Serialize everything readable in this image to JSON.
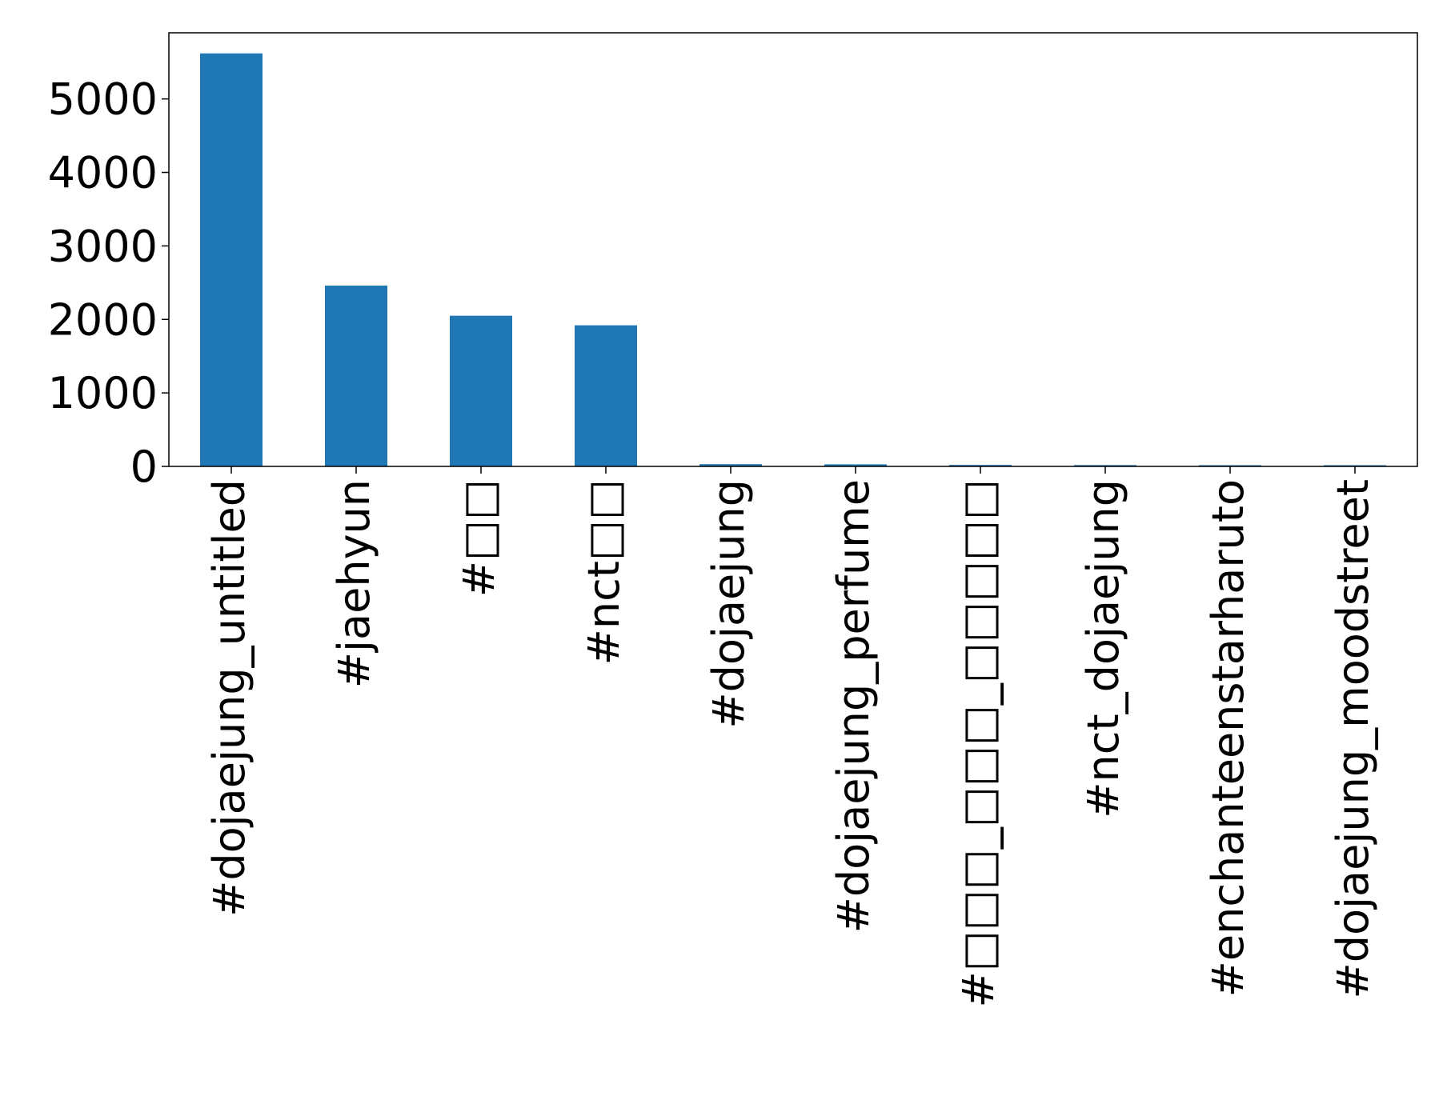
{
  "chart_data": {
    "type": "bar",
    "title": "",
    "xlabel": "",
    "ylabel": "",
    "categories": [
      "#dojaejung_untitled",
      "#jaehyun",
      "#□□",
      "#nct□□",
      "#dojaejung",
      "#dojaejung_perfume",
      "#□□□_□□□_□□□□□",
      "#nct_dojaejung",
      "#enchanteenstarharuto",
      "#dojaejung_moodstreet"
    ],
    "values": [
      5620,
      2460,
      2050,
      1920,
      30,
      28,
      20,
      18,
      15,
      12
    ],
    "yticks": [
      0,
      1000,
      2000,
      3000,
      4000,
      5000
    ],
    "ylim": [
      0,
      5900
    ],
    "grid": false,
    "legend": "none",
    "colors": {
      "bar": "#1f77b4",
      "axis": "#000000",
      "background": "#ffffff"
    }
  }
}
